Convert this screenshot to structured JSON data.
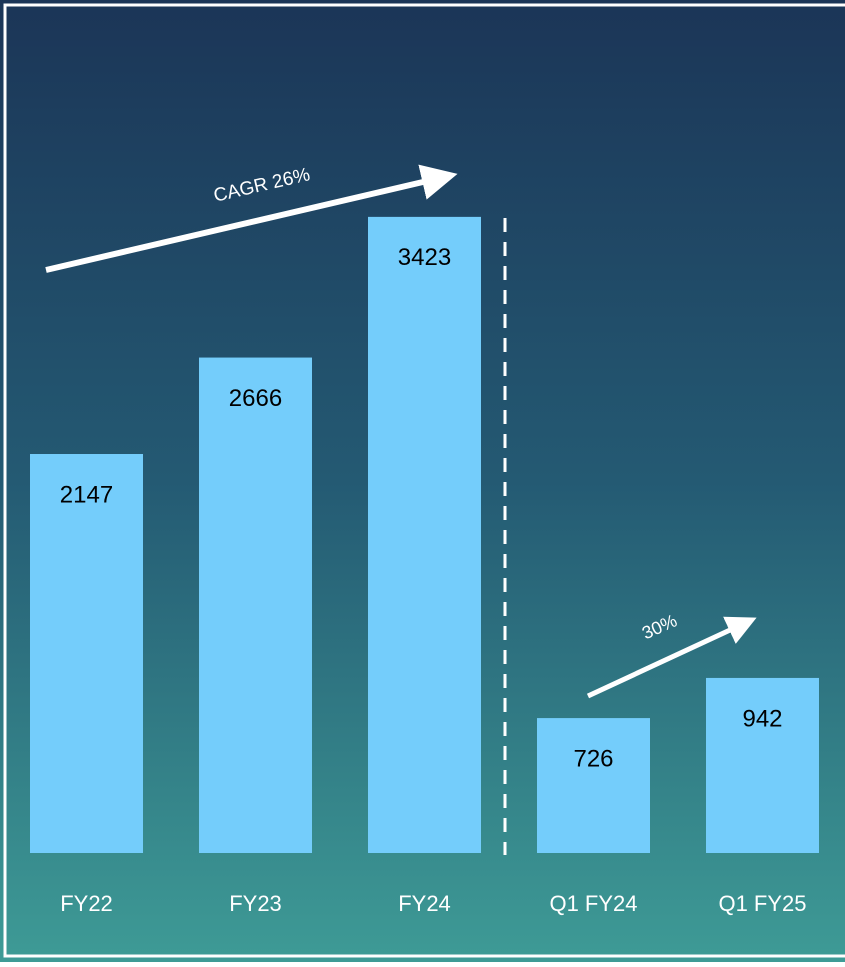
{
  "chart_data": {
    "type": "bar",
    "categories": [
      "FY22",
      "FY23",
      "FY24",
      "Q1 FY24",
      "Q1 FY25"
    ],
    "values": [
      2147,
      2666,
      3423,
      726,
      942
    ],
    "color": "#74cdfb",
    "ylim": [
      0,
      4590
    ],
    "annotations": [
      "CAGR  26%",
      "30%"
    ]
  }
}
